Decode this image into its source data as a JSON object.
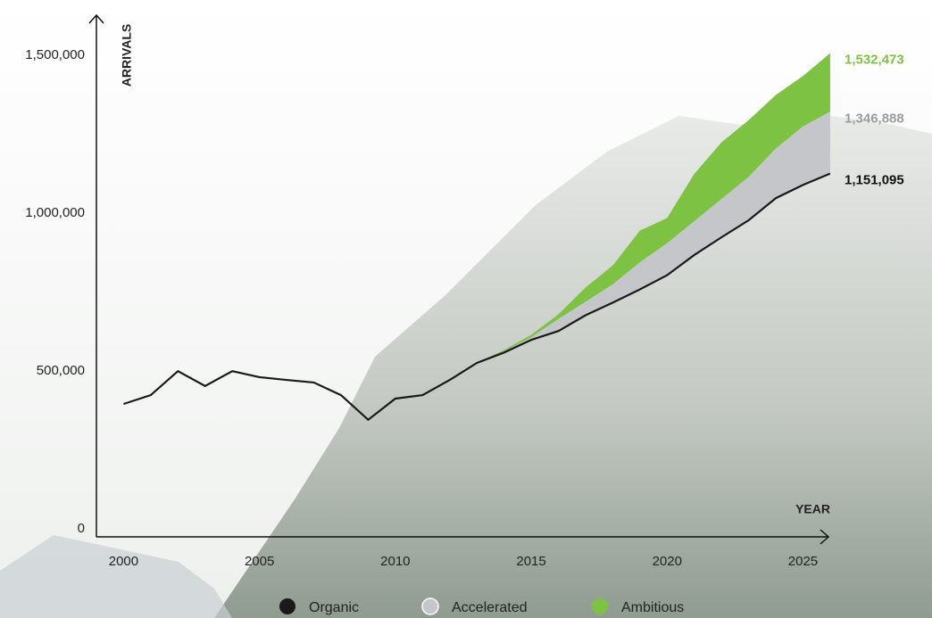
{
  "chart_data": {
    "type": "area-line",
    "y_label": "ARRIVALS",
    "x_label": "YEAR",
    "x": [
      2000,
      2001,
      2002,
      2003,
      2004,
      2005,
      2006,
      2007,
      2008,
      2009,
      2010,
      2011,
      2012,
      2013,
      2014,
      2015,
      2016,
      2017,
      2018,
      2019,
      2020,
      2021,
      2022,
      2023,
      2024,
      2025,
      2026
    ],
    "series": [
      {
        "name": "Organic",
        "color": "#1a1a1a",
        "values": [
          421000,
          449000,
          525000,
          478000,
          525000,
          506000,
          497000,
          489000,
          449000,
          371000,
          438000,
          449000,
          497000,
          551000,
          584000,
          624000,
          652000,
          702000,
          742000,
          784000,
          829000,
          893000,
          949000,
          1003000,
          1073000,
          1115000,
          1151095
        ],
        "value_labels": [
          null,
          null,
          null,
          null,
          null,
          null,
          null,
          null,
          null,
          null,
          null,
          null,
          null,
          null,
          null,
          null,
          null,
          null,
          null,
          null,
          null,
          null,
          null,
          null,
          null,
          null,
          "1,151,095"
        ]
      },
      {
        "name": "Accelerated",
        "color": "#c5c6ca",
        "values": [
          null,
          null,
          null,
          null,
          null,
          null,
          null,
          null,
          null,
          null,
          null,
          null,
          null,
          551000,
          588000,
          632000,
          690000,
          745000,
          800000,
          870000,
          930000,
          1000000,
          1070000,
          1140000,
          1230000,
          1300000,
          1346888
        ],
        "value_labels": [
          null,
          null,
          null,
          null,
          null,
          null,
          null,
          null,
          null,
          null,
          null,
          null,
          null,
          null,
          null,
          null,
          null,
          null,
          null,
          null,
          null,
          null,
          null,
          null,
          null,
          null,
          "1,346,888"
        ]
      },
      {
        "name": "Ambitious",
        "color": "#7dc242",
        "values": [
          null,
          null,
          null,
          null,
          null,
          null,
          null,
          null,
          null,
          null,
          null,
          null,
          null,
          551000,
          592000,
          640000,
          705000,
          790000,
          860000,
          970000,
          1010000,
          1150000,
          1250000,
          1320000,
          1400000,
          1460000,
          1532473
        ],
        "value_labels": [
          null,
          null,
          null,
          null,
          null,
          null,
          null,
          null,
          null,
          null,
          null,
          null,
          null,
          null,
          null,
          null,
          null,
          null,
          null,
          null,
          null,
          null,
          null,
          null,
          null,
          null,
          "1,532,473"
        ]
      }
    ],
    "xlim": [
      1999,
      2026.2
    ],
    "xticks": [
      2000,
      2005,
      2010,
      2015,
      2020,
      2025
    ],
    "ylim": [
      0,
      1650000
    ],
    "yticks": [
      0,
      {
        "value": 500000,
        "label": "500,000"
      },
      {
        "value": 1000000,
        "label": "1,000,000"
      },
      {
        "value": 1500000,
        "label": "1,500,000"
      }
    ]
  }
}
